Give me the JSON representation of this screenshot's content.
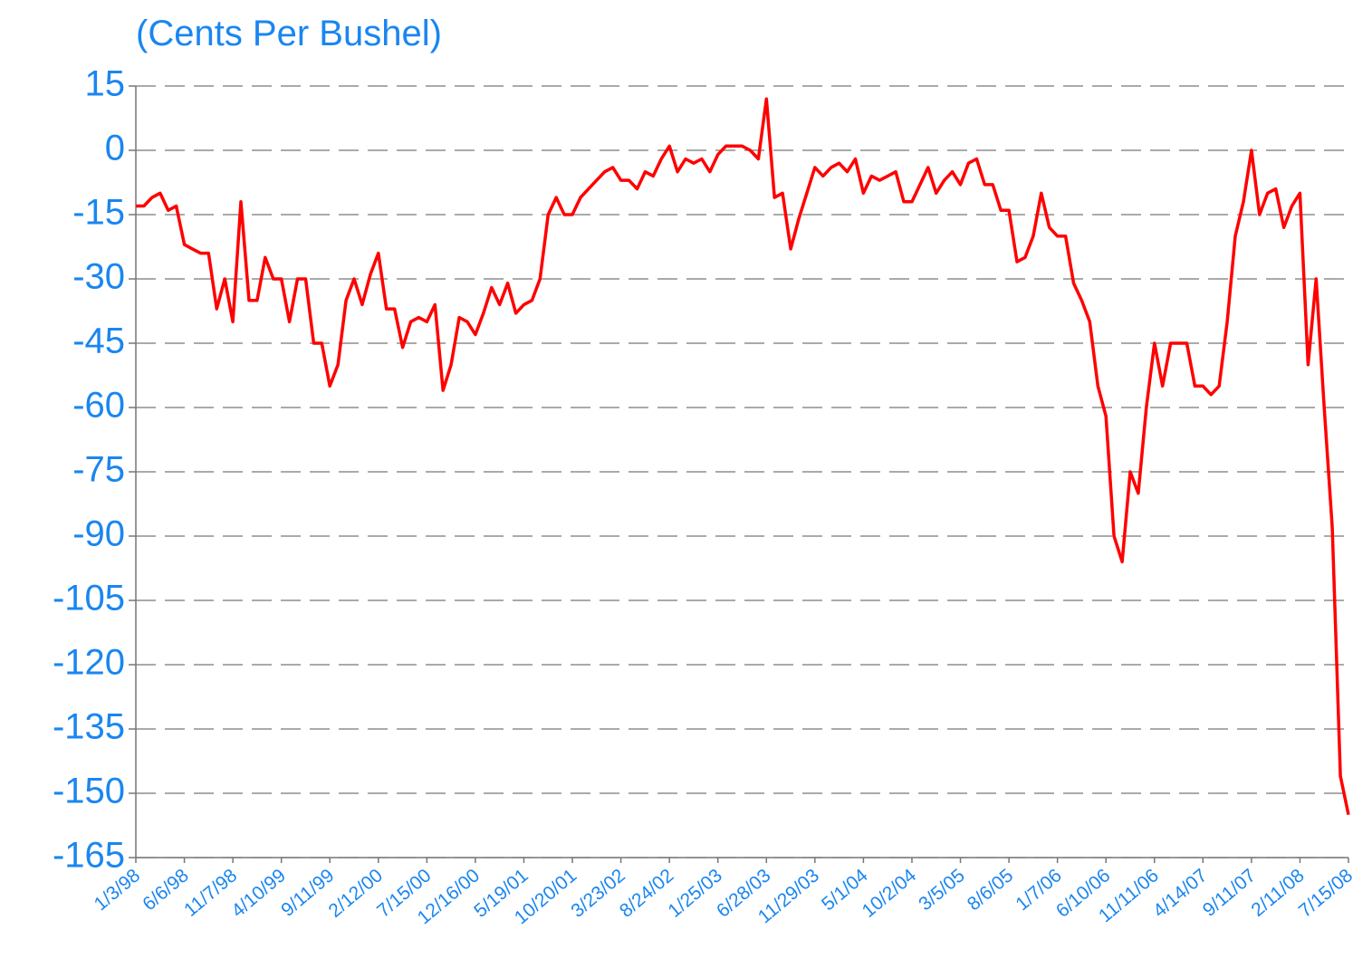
{
  "chart_data": {
    "type": "line",
    "title": "(Cents Per Bushel)",
    "color": "#ff0000",
    "grid": true,
    "ylim": [
      -165,
      15
    ],
    "yticks": [
      15,
      0,
      -15,
      -30,
      -45,
      -60,
      -75,
      -90,
      -105,
      -120,
      -135,
      -150,
      -165
    ],
    "categories": [
      "1/3/98",
      null,
      null,
      null,
      null,
      null,
      "6/6/98",
      null,
      null,
      null,
      null,
      null,
      "11/7/98",
      null,
      null,
      null,
      null,
      null,
      "4/10/99",
      null,
      null,
      null,
      null,
      null,
      "9/11/99",
      null,
      null,
      null,
      null,
      null,
      "2/12/00",
      null,
      null,
      null,
      null,
      null,
      "7/15/00",
      null,
      null,
      null,
      null,
      null,
      "12/16/00",
      null,
      null,
      null,
      null,
      null,
      "5/19/01",
      null,
      null,
      null,
      null,
      null,
      "10/20/01",
      null,
      null,
      null,
      null,
      null,
      "3/23/02",
      null,
      null,
      null,
      null,
      null,
      "8/24/02",
      null,
      null,
      null,
      null,
      null,
      "1/25/03",
      null,
      null,
      null,
      null,
      null,
      "6/28/03",
      null,
      null,
      null,
      null,
      null,
      "11/29/03",
      null,
      null,
      null,
      null,
      null,
      "5/1/04",
      null,
      null,
      null,
      null,
      null,
      "10/2/04",
      null,
      null,
      null,
      null,
      null,
      "3/5/05",
      null,
      null,
      null,
      null,
      null,
      "8/6/05",
      null,
      null,
      null,
      null,
      null,
      "1/7/06",
      null,
      null,
      null,
      null,
      null,
      "6/10/06",
      null,
      null,
      null,
      null,
      null,
      "11/11/06",
      null,
      null,
      null,
      null,
      null,
      "4/14/07",
      null,
      null,
      null,
      null,
      null,
      "9/11/07",
      null,
      null,
      null,
      null,
      null,
      "2/11/08",
      null,
      null,
      null,
      null,
      null,
      "7/15/08"
    ],
    "values": [
      -13,
      -13,
      -11,
      -10,
      -14,
      -13,
      -22,
      -23,
      -24,
      -24,
      -37,
      -30,
      -40,
      -12,
      -35,
      -35,
      -25,
      -30,
      -30,
      -40,
      -30,
      -30,
      -45,
      -45,
      -55,
      -50,
      -35,
      -30,
      -36,
      -29,
      -24,
      -37,
      -37,
      -46,
      -40,
      -39,
      -40,
      -36,
      -56,
      -50,
      -39,
      -40,
      -43,
      -38,
      -32,
      -36,
      -31,
      -38,
      -36,
      -35,
      -30,
      -15,
      -11,
      -15,
      -15,
      -11,
      -9,
      -7,
      -5,
      -4,
      -7,
      -7,
      -9,
      -5,
      -6,
      -2,
      1,
      -5,
      -2,
      -3,
      -2,
      -5,
      -1,
      1,
      1,
      1,
      0,
      -2,
      12,
      -11,
      -10,
      -23,
      -16,
      -10,
      -4,
      -6,
      -4,
      -3,
      -5,
      -2,
      -10,
      -6,
      -7,
      -6,
      -5,
      -12,
      -12,
      -8,
      -4,
      -10,
      -7,
      -5,
      -8,
      -3,
      -2,
      -8,
      -8,
      -14,
      -14,
      -26,
      -25,
      -20,
      -10,
      -18,
      -20,
      -20,
      -31,
      -35,
      -40,
      -55,
      -62,
      -90,
      -96,
      -75,
      -80,
      -60,
      -45,
      -55,
      -45,
      -45,
      -45,
      -55,
      -55,
      -57,
      -55,
      -40,
      -20,
      -12,
      0,
      -15,
      -10,
      -9,
      -18,
      -13,
      -10,
      -50,
      -30,
      -60,
      -88,
      -146,
      -155
    ]
  }
}
